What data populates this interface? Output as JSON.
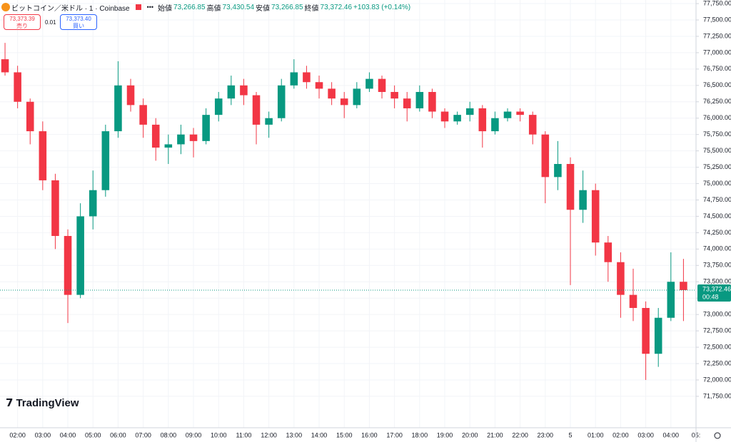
{
  "header": {
    "symbol": "ビットコイン／米ドル · 1 · Coinbase",
    "open_label": "始値",
    "open": "73,266.85",
    "high_label": "高値",
    "high": "73,430.54",
    "low_label": "安値",
    "low": "73,266.85",
    "close_label": "終値",
    "close": "73,372.46",
    "change": "+103.83 (+0.14%)"
  },
  "trade": {
    "sell_price": "73,373.39",
    "sell_label": "売り",
    "spread": "0.01",
    "buy_price": "73,373.40",
    "buy_label": "買い"
  },
  "logo": "TradingView",
  "chart_data": {
    "type": "candlestick",
    "x": [
      1.5,
      2,
      2.5,
      3,
      3.5,
      4,
      4.5,
      5,
      5.5,
      6,
      6.5,
      7,
      7.5,
      8,
      8.5,
      9,
      9.5,
      10,
      10.5,
      11,
      11.5,
      12,
      12.5,
      13,
      13.5,
      14,
      14.5,
      15,
      15.5,
      16,
      16.5,
      17,
      17.5,
      18,
      18.5,
      19,
      19.5,
      20,
      20.5,
      21,
      21.5,
      22,
      22.5,
      23,
      23.5,
      24,
      24.5,
      25,
      25.5,
      26,
      26.5,
      27,
      27.5,
      28,
      28.5
    ],
    "open": [
      76900,
      76700,
      76250,
      75800,
      75050,
      74200,
      73300,
      74500,
      74900,
      75800,
      76500,
      76200,
      75900,
      75550,
      75600,
      75750,
      75650,
      76050,
      76300,
      76500,
      76350,
      75900,
      76000,
      76500,
      76700,
      76550,
      76450,
      76300,
      76200,
      76450,
      76600,
      76400,
      76300,
      76150,
      76400,
      76100,
      75950,
      76050,
      76150,
      75800,
      76000,
      76100,
      76050,
      75750,
      75100,
      75300,
      74600,
      74900,
      74100,
      73800,
      73300,
      73100,
      72400,
      72950,
      73500
    ],
    "high": [
      77150,
      76800,
      76300,
      75950,
      75150,
      74300,
      74700,
      75200,
      75900,
      76870,
      76600,
      76300,
      76000,
      75750,
      75900,
      75850,
      76150,
      76400,
      76650,
      76600,
      76400,
      76100,
      76600,
      76900,
      76800,
      76650,
      76550,
      76400,
      76550,
      76700,
      76650,
      76500,
      76400,
      76500,
      76450,
      76150,
      76100,
      76250,
      76200,
      76100,
      76150,
      76150,
      76100,
      75800,
      75650,
      75400,
      75200,
      75000,
      74200,
      73950,
      73700,
      73200,
      73100,
      73950,
      73850
    ],
    "low": [
      76650,
      76150,
      75600,
      74900,
      74000,
      72870,
      73250,
      74300,
      74800,
      75700,
      76100,
      75700,
      75350,
      75300,
      75450,
      75400,
      75600,
      75950,
      76200,
      76200,
      75600,
      75700,
      75950,
      76450,
      76450,
      76300,
      76200,
      76000,
      76150,
      76400,
      76300,
      76150,
      75950,
      76100,
      76000,
      75850,
      75900,
      75950,
      75550,
      75750,
      75950,
      75950,
      75600,
      74700,
      74900,
      73450,
      74400,
      73900,
      73500,
      72950,
      72900,
      72000,
      72200,
      72900,
      72900
    ],
    "close": [
      76700,
      76250,
      75800,
      75050,
      74200,
      73300,
      74500,
      74900,
      75800,
      76500,
      76200,
      75900,
      75550,
      75600,
      75750,
      75650,
      76050,
      76300,
      76500,
      76350,
      75900,
      76000,
      76500,
      76700,
      76550,
      76450,
      76300,
      76200,
      76450,
      76600,
      76400,
      76300,
      76150,
      76400,
      76100,
      75950,
      76050,
      76150,
      75800,
      76000,
      76100,
      76050,
      75750,
      75100,
      75300,
      74600,
      74900,
      74100,
      73800,
      73300,
      73100,
      72400,
      72950,
      73500,
      73372.46
    ],
    "up_color": "#089981",
    "down_color": "#f23645",
    "xlim": [
      1.3,
      29
    ],
    "ylim": [
      71270,
      77805
    ],
    "xticks": [
      {
        "value": 2,
        "label": "02:00"
      },
      {
        "value": 3,
        "label": "03:00"
      },
      {
        "value": 4,
        "label": "04:00"
      },
      {
        "value": 5,
        "label": "05:00"
      },
      {
        "value": 6,
        "label": "06:00"
      },
      {
        "value": 7,
        "label": "07:00"
      },
      {
        "value": 8,
        "label": "08:00"
      },
      {
        "value": 9,
        "label": "09:00"
      },
      {
        "value": 10,
        "label": "10:00"
      },
      {
        "value": 11,
        "label": "11:00"
      },
      {
        "value": 12,
        "label": "12:00"
      },
      {
        "value": 13,
        "label": "13:00"
      },
      {
        "value": 14,
        "label": "14:00"
      },
      {
        "value": 15,
        "label": "15:00"
      },
      {
        "value": 16,
        "label": "16:00"
      },
      {
        "value": 17,
        "label": "17:00"
      },
      {
        "value": 18,
        "label": "18:00"
      },
      {
        "value": 19,
        "label": "19:00"
      },
      {
        "value": 20,
        "label": "20:00"
      },
      {
        "value": 21,
        "label": "21:00"
      },
      {
        "value": 22,
        "label": "22:00"
      },
      {
        "value": 23,
        "label": "23:00"
      },
      {
        "value": 24,
        "label": "5"
      },
      {
        "value": 25,
        "label": "01:00"
      },
      {
        "value": 26,
        "label": "02:00"
      },
      {
        "value": 27,
        "label": "03:00"
      },
      {
        "value": 28,
        "label": "04:00"
      },
      {
        "value": 29,
        "label": "05:"
      }
    ],
    "yticks": [
      {
        "value": 71750,
        "label": "71,750.00"
      },
      {
        "value": 72000,
        "label": "72,000.00"
      },
      {
        "value": 72250,
        "label": "72,250.00"
      },
      {
        "value": 72500,
        "label": "72,500.00"
      },
      {
        "value": 72750,
        "label": "72,750.00"
      },
      {
        "value": 73000,
        "label": "73,000.00"
      },
      {
        "value": 73250,
        "label": "73,250.00"
      },
      {
        "value": 73500,
        "label": "73,500.00"
      },
      {
        "value": 73750,
        "label": "73,750.00"
      },
      {
        "value": 74000,
        "label": "74,000.00"
      },
      {
        "value": 74250,
        "label": "74,250.00"
      },
      {
        "value": 74500,
        "label": "74,500.00"
      },
      {
        "value": 74750,
        "label": "74,750.00"
      },
      {
        "value": 75000,
        "label": "75,000.00"
      },
      {
        "value": 75250,
        "label": "75,250.00"
      },
      {
        "value": 75500,
        "label": "75,500.00"
      },
      {
        "value": 75750,
        "label": "75,750.00"
      },
      {
        "value": 76000,
        "label": "76,000.00"
      },
      {
        "value": 76250,
        "label": "76,250.00"
      },
      {
        "value": 76500,
        "label": "76,500.00"
      },
      {
        "value": 76750,
        "label": "76,750.00"
      },
      {
        "value": 77000,
        "label": "77,000.00"
      },
      {
        "value": 77250,
        "label": "77,250.00"
      },
      {
        "value": 77500,
        "label": "77,500.00"
      },
      {
        "value": 77750,
        "label": "77,750.00"
      }
    ],
    "last_price": {
      "value": 73372.46,
      "label": "73,372.46"
    },
    "countdown": "00:48",
    "grid": true
  }
}
